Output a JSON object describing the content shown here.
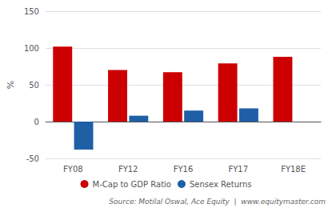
{
  "chart_data": {
    "type": "bar",
    "categories": [
      "FY08",
      "FY12",
      "FY16",
      "FY17",
      "FY18E"
    ],
    "series": [
      {
        "name": "M-Cap to GDP Ratio",
        "color": "#cc0000",
        "values": [
          102,
          70,
          67,
          79,
          88
        ]
      },
      {
        "name": "Sensex Returns",
        "color": "#1f5fa6",
        "values": [
          -38,
          8,
          15,
          18,
          0
        ]
      }
    ],
    "ylabel": "%",
    "ylim": [
      -50,
      150
    ],
    "yticks": [
      -50,
      0,
      50,
      100,
      150
    ],
    "grid": true,
    "legend": "bottom",
    "annotation": "Source: Motilal Oswal, Ace Equity  |  www.equitymaster.com"
  }
}
